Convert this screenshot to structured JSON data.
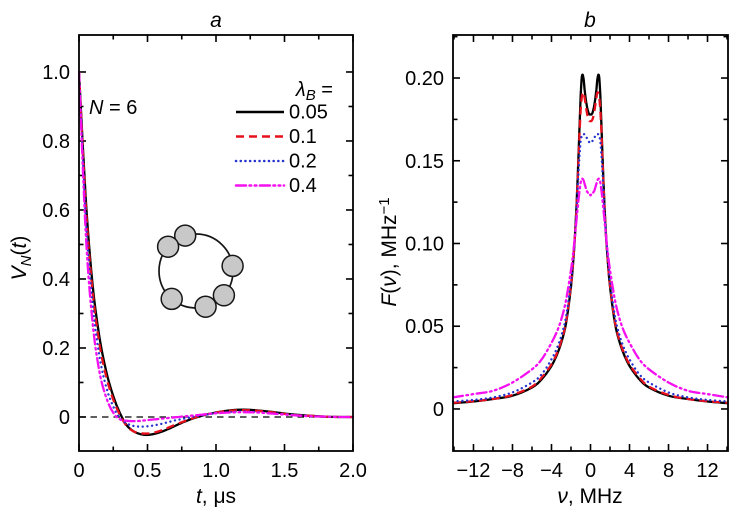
{
  "figure": {
    "panel_a": {
      "title": "a",
      "annotation": {
        "symbol": "N",
        "rest": " = 6"
      },
      "xlabel": {
        "symbol": "t",
        "rest": ", μs"
      },
      "ylabel": {
        "symbol": "V",
        "sub": "N",
        "open": "(",
        "arg": "t",
        "close": ")"
      }
    },
    "panel_b": {
      "title": "b",
      "xlabel": {
        "symbol": "ν",
        "rest": ", MHz"
      },
      "ylabel": {
        "symbol": "F",
        "open": "(",
        "arg": "ν",
        "close": "), MHz",
        "sup": "−1"
      }
    },
    "legend": {
      "header": {
        "symbol": "λ",
        "sub": "B",
        "rest": " ="
      },
      "entries": [
        {
          "label": "0.05"
        },
        {
          "label": "0.1"
        },
        {
          "label": "0.2"
        },
        {
          "label": "0.4"
        }
      ]
    },
    "inset": {
      "meaning": "ring of N = 6 spins",
      "node_count": 6,
      "node_angles_deg": [
        107,
        139,
        8,
        -41,
        -75,
        -131
      ]
    },
    "colors": {
      "black": "#000000",
      "red": "#e8101c",
      "blue": "#2533d0",
      "magenta": "#f410f0",
      "node_gray": "#c8c8c8"
    }
  },
  "chart_data": [
    {
      "type": "line",
      "panel": "a",
      "title": "a",
      "xlabel": "t, μs",
      "ylabel": "V_N(t)",
      "annotation": "N = 6",
      "legend_title": "λ_B =",
      "xlim": [
        0,
        2
      ],
      "ylim": [
        -0.0986,
        1.1072
      ],
      "grid": false,
      "zero_line": true,
      "xticks": {
        "major": [
          0,
          0.5,
          1.0,
          1.5,
          2.0
        ],
        "labels": [
          "0",
          "0.5",
          "1.0",
          "1.5",
          "2.0"
        ],
        "minor": [
          0.25,
          0.75,
          1.25,
          1.75
        ]
      },
      "yticks": {
        "major": [
          0,
          0.2,
          0.4,
          0.6,
          0.8,
          1.0
        ],
        "labels": [
          "0",
          "0.2",
          "0.4",
          "0.6",
          "0.8",
          "1.0"
        ],
        "minor": [
          0.1,
          0.3,
          0.5,
          0.7,
          0.9
        ]
      },
      "x": [
        0,
        0.05,
        0.1,
        0.15,
        0.2,
        0.25,
        0.3,
        0.35,
        0.4,
        0.45,
        0.5,
        0.55,
        0.6,
        0.65,
        0.7,
        0.75,
        0.8,
        0.85,
        0.9,
        0.95,
        1.0,
        1.1,
        1.2,
        1.3,
        1.4,
        1.5,
        1.6,
        1.7,
        1.8,
        1.9,
        2.0
      ],
      "series": [
        {
          "name": "0.05",
          "color": "#000000",
          "dash": "solid",
          "values": [
            1.0,
            0.63,
            0.38,
            0.23,
            0.13,
            0.06,
            0.01,
            -0.025,
            -0.042,
            -0.05,
            -0.052,
            -0.049,
            -0.043,
            -0.035,
            -0.026,
            -0.017,
            -0.009,
            -0.002,
            0.004,
            0.009,
            0.013,
            0.019,
            0.021,
            0.019,
            0.015,
            0.01,
            0.006,
            0.003,
            0.001,
            0.0,
            0.0
          ]
        },
        {
          "name": "0.1",
          "color": "#e8101c",
          "dash": "dashed",
          "values": [
            1.0,
            0.61,
            0.36,
            0.21,
            0.115,
            0.05,
            0.005,
            -0.027,
            -0.042,
            -0.047,
            -0.048,
            -0.045,
            -0.039,
            -0.031,
            -0.023,
            -0.015,
            -0.008,
            -0.001,
            0.005,
            0.009,
            0.013,
            0.018,
            0.02,
            0.018,
            0.014,
            0.009,
            0.005,
            0.003,
            0.001,
            0.0,
            0.0
          ]
        },
        {
          "name": "0.2",
          "color": "#2533d0",
          "dash": "dotted",
          "values": [
            1.0,
            0.58,
            0.325,
            0.175,
            0.085,
            0.03,
            -0.004,
            -0.019,
            -0.026,
            -0.028,
            -0.027,
            -0.024,
            -0.02,
            -0.015,
            -0.01,
            -0.006,
            -0.002,
            0.002,
            0.005,
            0.008,
            0.011,
            0.014,
            0.016,
            0.014,
            0.011,
            0.008,
            0.005,
            0.002,
            0.001,
            0.0,
            0.0
          ]
        },
        {
          "name": "0.4",
          "color": "#f410f0",
          "dash": "dash-dot-dot",
          "values": [
            1.0,
            0.53,
            0.27,
            0.13,
            0.055,
            0.012,
            -0.007,
            -0.011,
            -0.012,
            -0.011,
            -0.009,
            -0.007,
            -0.005,
            -0.003,
            -0.001,
            0.001,
            0.003,
            0.005,
            0.007,
            0.009,
            0.011,
            0.013,
            0.014,
            0.013,
            0.01,
            0.007,
            0.004,
            0.002,
            0.001,
            0.0,
            0.0
          ]
        }
      ]
    },
    {
      "type": "line",
      "panel": "b",
      "title": "b",
      "xlabel": "ν, MHz",
      "ylabel": "F(ν), MHz⁻¹",
      "xlim": [
        -14.1,
        14.1
      ],
      "ylim": [
        -0.0254,
        0.226
      ],
      "grid": false,
      "zero_line": false,
      "symmetric": true,
      "xticks": {
        "major": [
          -12,
          -8,
          -4,
          0,
          4,
          8,
          12
        ],
        "labels": [
          "−12",
          "−8",
          "−4",
          "0",
          "4",
          "8",
          "12"
        ],
        "minor": [
          -14,
          -10,
          -6,
          -2,
          2,
          6,
          10,
          14
        ]
      },
      "yticks": {
        "major": [
          0,
          0.05,
          0.1,
          0.15,
          0.2
        ],
        "labels": [
          "0",
          "0.05",
          "0.10",
          "0.15",
          "0.20"
        ],
        "minor": [
          0.025,
          0.075,
          0.125,
          0.175,
          0.225
        ]
      },
      "x_abs": [
        0,
        0.1,
        0.2,
        0.3,
        0.4,
        0.5,
        0.6,
        0.7,
        0.8,
        0.9,
        1.0,
        1.1,
        1.2,
        1.4,
        1.6,
        1.8,
        2.0,
        2.5,
        3.0,
        3.5,
        4.0,
        5.0,
        6.0,
        8.0,
        10.0,
        12.0,
        14.1
      ],
      "series": [
        {
          "name": "0.05",
          "color": "#000000",
          "dash": "solid",
          "values_abs": [
            0.178,
            0.178,
            0.179,
            0.181,
            0.184,
            0.188,
            0.193,
            0.199,
            0.202,
            0.2,
            0.19,
            0.175,
            0.158,
            0.127,
            0.104,
            0.087,
            0.074,
            0.052,
            0.04,
            0.032,
            0.026,
            0.018,
            0.013,
            0.008,
            0.006,
            0.0045,
            0.0035
          ]
        },
        {
          "name": "0.1",
          "color": "#e8101c",
          "dash": "dashed",
          "values_abs": [
            0.174,
            0.174,
            0.175,
            0.177,
            0.18,
            0.184,
            0.188,
            0.191,
            0.191,
            0.188,
            0.181,
            0.17,
            0.155,
            0.126,
            0.104,
            0.087,
            0.075,
            0.053,
            0.041,
            0.033,
            0.027,
            0.019,
            0.0135,
            0.0085,
            0.006,
            0.0047,
            0.0037
          ]
        },
        {
          "name": "0.2",
          "color": "#2533d0",
          "dash": "dotted",
          "values_abs": [
            0.161,
            0.161,
            0.162,
            0.163,
            0.164,
            0.165,
            0.166,
            0.166,
            0.166,
            0.165,
            0.162,
            0.155,
            0.146,
            0.124,
            0.104,
            0.089,
            0.077,
            0.056,
            0.044,
            0.036,
            0.03,
            0.021,
            0.016,
            0.01,
            0.007,
            0.0055,
            0.0045
          ]
        },
        {
          "name": "0.4",
          "color": "#f410f0",
          "dash": "dash-dot-dot",
          "values_abs": [
            0.129,
            0.13,
            0.13,
            0.131,
            0.132,
            0.134,
            0.136,
            0.138,
            0.139,
            0.139,
            0.137,
            0.133,
            0.128,
            0.116,
            0.104,
            0.093,
            0.084,
            0.066,
            0.054,
            0.046,
            0.04,
            0.03,
            0.024,
            0.016,
            0.011,
            0.009,
            0.007
          ]
        }
      ]
    }
  ]
}
